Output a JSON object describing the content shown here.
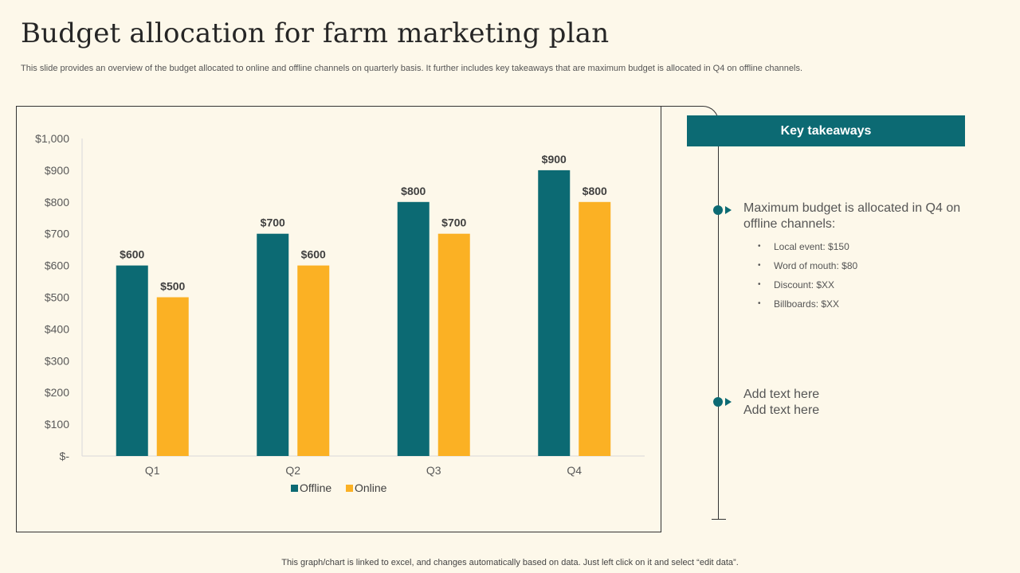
{
  "header": {
    "title": "Budget allocation for farm marketing plan",
    "subtitle": "This slide provides an overview of the budget allocated to online and offline channels on quarterly basis. It further includes key takeaways that are maximum budget is allocated in Q4 on offline channels."
  },
  "chart_data": {
    "type": "bar",
    "title": "",
    "xlabel": "",
    "ylabel": "",
    "categories": [
      "Q1",
      "Q2",
      "Q3",
      "Q4"
    ],
    "series": [
      {
        "name": "Offline",
        "color": "#0c6a73",
        "values": [
          600,
          700,
          800,
          900
        ],
        "labels": [
          "$600",
          "$700",
          "$800",
          "$900"
        ]
      },
      {
        "name": "Online",
        "color": "#fbb124",
        "values": [
          500,
          600,
          700,
          800
        ],
        "labels": [
          "$500",
          "$600",
          "$700",
          "$800"
        ]
      }
    ],
    "ylim": [
      0,
      1000
    ],
    "yticks": [
      0,
      100,
      200,
      300,
      400,
      500,
      600,
      700,
      800,
      900,
      1000
    ],
    "ytick_labels": [
      "$-",
      "$100",
      "$200",
      "$300",
      "$400",
      "$500",
      "$600",
      "$700",
      "$800",
      "$900",
      "$1,000"
    ],
    "grid": false,
    "legend": "bottom"
  },
  "takeaways": {
    "header": "Key takeaways",
    "points": [
      {
        "text_line1": "Maximum budget is allocated in Q4 on",
        "text_line2": "offline channels:",
        "bullets": [
          "Local event:  $150",
          "Word of mouth:  $80",
          "Discount:  $XX",
          "Billboards:  $XX"
        ]
      },
      {
        "text_line1": "Add text here",
        "text_line2": "Add text here"
      }
    ]
  },
  "footer": {
    "note": "This graph/chart is linked to excel,  and changes automatically based on data. Just left click on it and select “edit data”."
  },
  "colors": {
    "accent": "#0c6a73",
    "secondary": "#fbb124",
    "background": "#fdf8ea"
  }
}
